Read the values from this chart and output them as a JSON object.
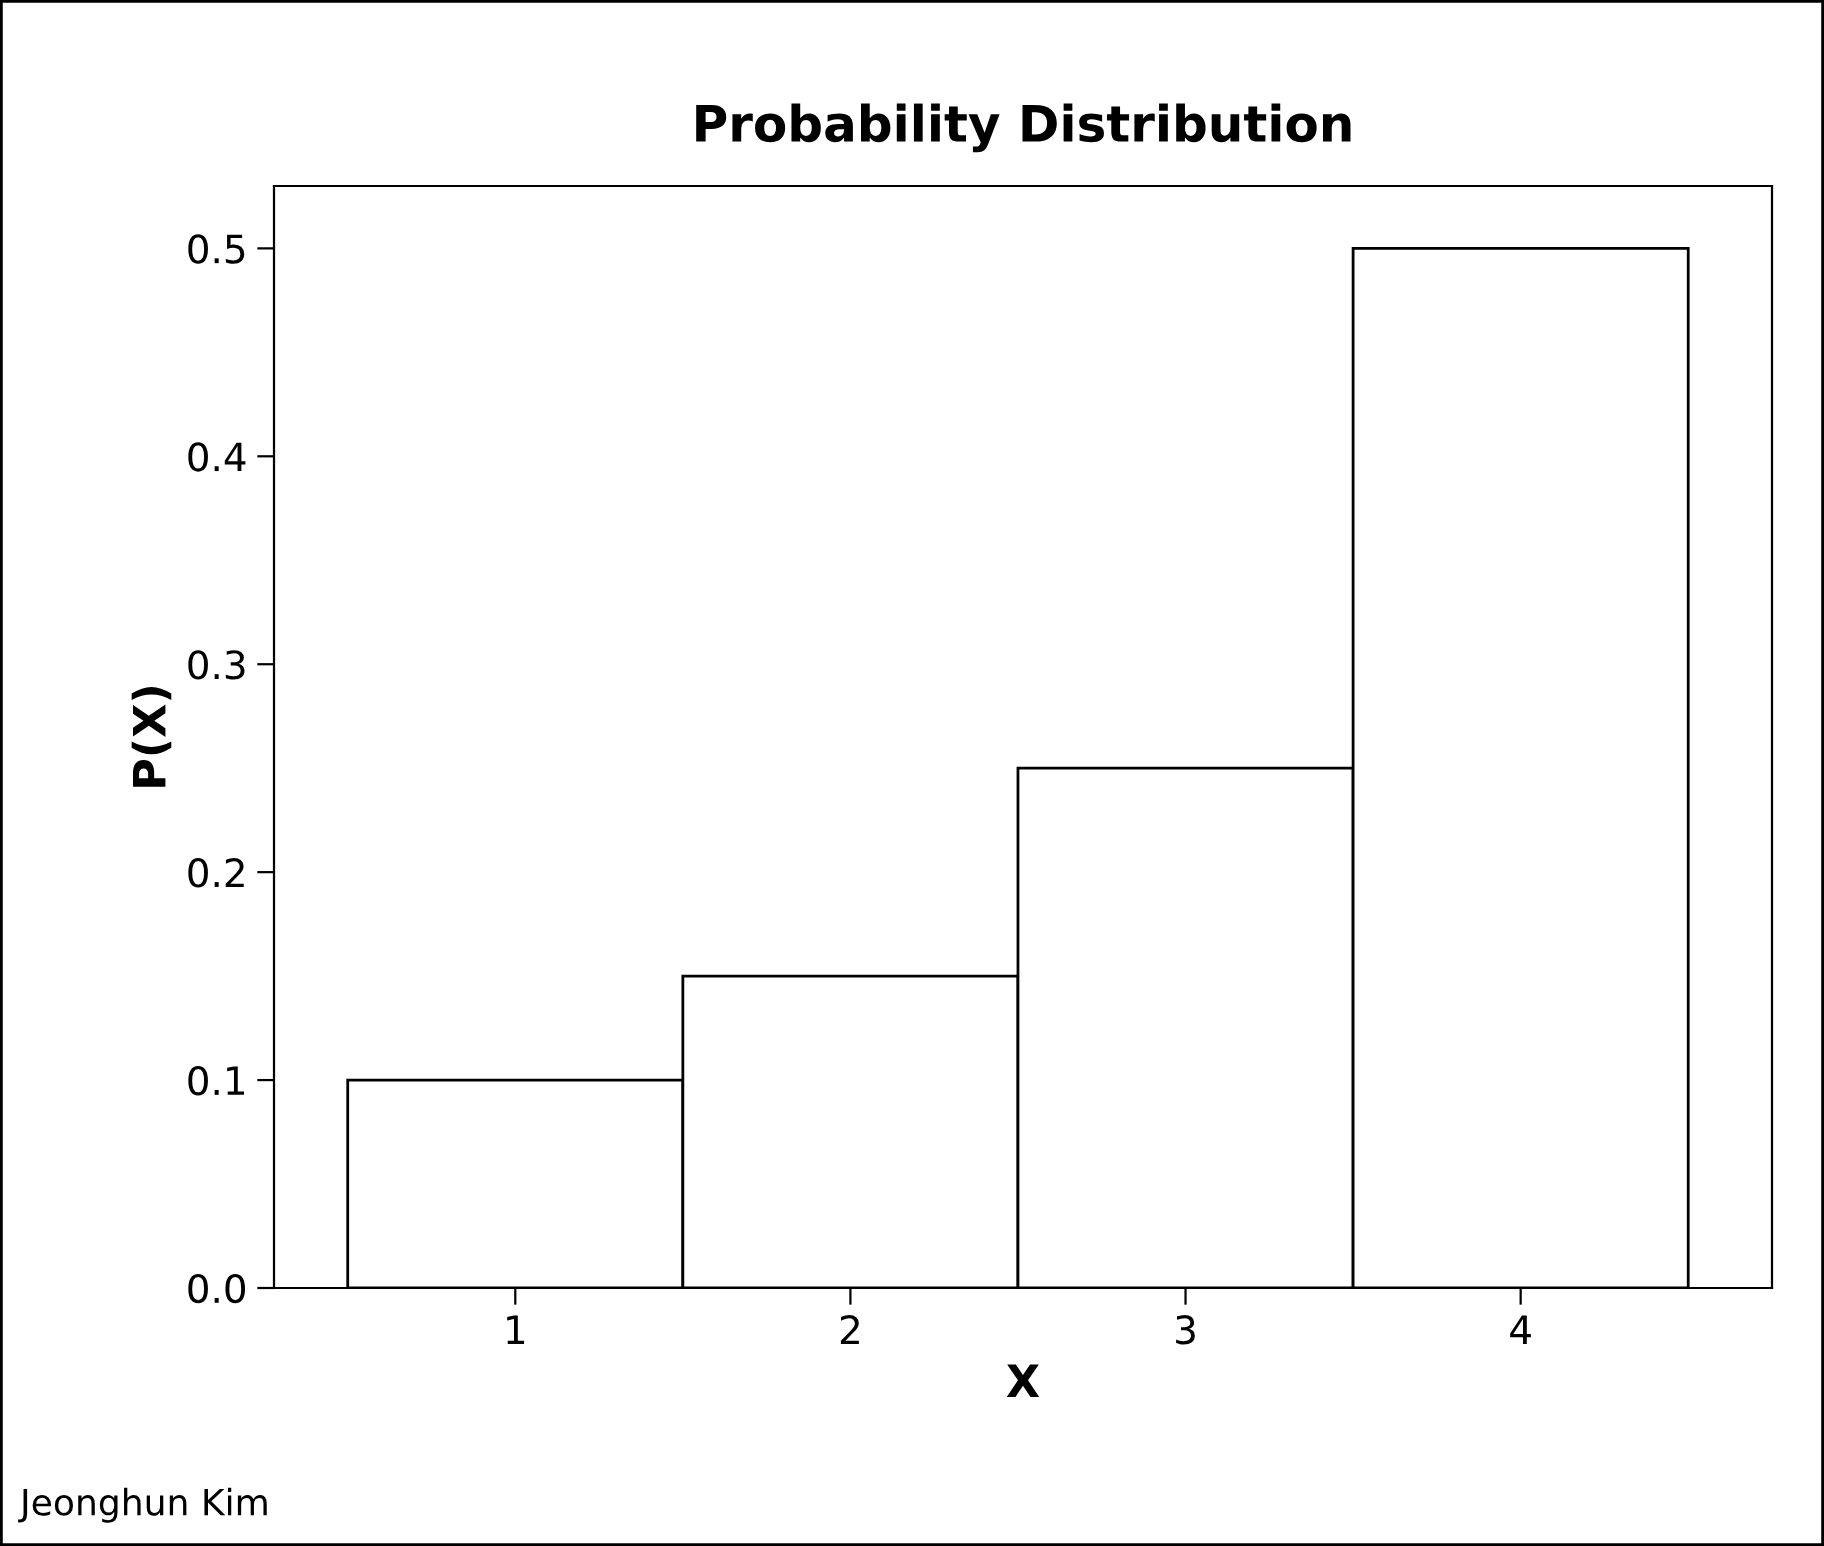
{
  "chart_data": {
    "type": "bar",
    "title": "Probability Distribution",
    "xlabel": "X",
    "ylabel": "P(X)",
    "categories": [
      "1",
      "2",
      "3",
      "4"
    ],
    "values": [
      0.1,
      0.15,
      0.25,
      0.5
    ],
    "color": "#ffffff",
    "ylim": [
      0,
      0.53
    ],
    "yticks": [
      {
        "value": 0,
        "label": "0.0"
      },
      0.1,
      0.2,
      0.3,
      0.4,
      0.5
    ],
    "grid": false,
    "legend": false,
    "annotations": [
      "Jeonghun Kim"
    ]
  }
}
